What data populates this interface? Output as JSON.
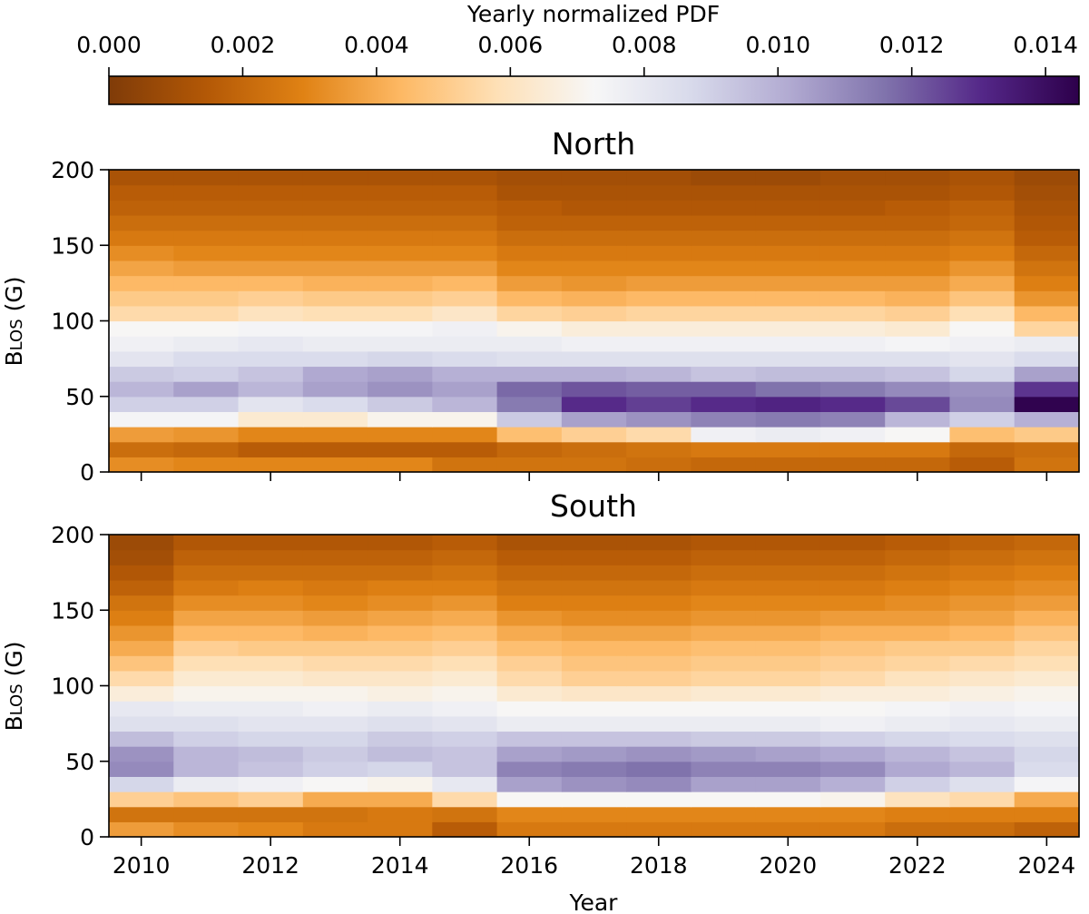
{
  "chart_data": [
    {
      "type": "colorbar",
      "label": "Yearly normalized PDF",
      "range": [
        0.0,
        0.0145
      ],
      "ticks": [
        0.0,
        0.002,
        0.004,
        0.006,
        0.008,
        0.01,
        0.012,
        0.014
      ],
      "tick_labels": [
        "0.000",
        "0.002",
        "0.004",
        "0.006",
        "0.008",
        "0.010",
        "0.012",
        "0.014"
      ],
      "colormap": "PuOr",
      "colormap_stops": [
        "#7f3b08",
        "#b35806",
        "#e08214",
        "#fdb863",
        "#fee0b6",
        "#f7f7f7",
        "#d8daeb",
        "#b2abd2",
        "#8073ac",
        "#542788",
        "#2d004b"
      ]
    },
    {
      "type": "heatmap",
      "title": "North",
      "xlabel": "",
      "ylabel": "B_LOS (G)",
      "ylabel_main": "B",
      "ylabel_sub": "LOS",
      "ylabel_unit": "(G)",
      "x": [
        2010,
        2011,
        2012,
        2013,
        2014,
        2015,
        2016,
        2017,
        2018,
        2019,
        2020,
        2021,
        2022,
        2023,
        2024
      ],
      "x_ticks": [
        2010,
        2012,
        2014,
        2016,
        2018,
        2020,
        2022,
        2024
      ],
      "x_tick_labels": [],
      "y_bins": [
        0,
        10,
        20,
        30,
        40,
        50,
        60,
        70,
        80,
        90,
        100,
        110,
        120,
        130,
        140,
        150,
        160,
        170,
        180,
        190,
        200
      ],
      "y_ticks": [
        0,
        50,
        100,
        150,
        200
      ],
      "y_tick_labels": [
        "0",
        "50",
        "100",
        "150",
        "200"
      ],
      "ylim": [
        0,
        200
      ],
      "z": [
        [
          0.0032,
          0.003,
          0.003,
          0.003,
          0.003,
          0.0024,
          0.0024,
          0.0024,
          0.0022,
          0.002,
          0.002,
          0.002,
          0.002,
          0.0016,
          0.0024
        ],
        [
          0.0022,
          0.002,
          0.0016,
          0.0016,
          0.0016,
          0.0016,
          0.002,
          0.0022,
          0.0024,
          0.0026,
          0.0026,
          0.0026,
          0.0026,
          0.002,
          0.0022
        ],
        [
          0.0036,
          0.0034,
          0.003,
          0.003,
          0.003,
          0.003,
          0.0046,
          0.0052,
          0.0056,
          0.0076,
          0.0078,
          0.0076,
          0.0072,
          0.0046,
          0.005
        ],
        [
          0.0074,
          0.0074,
          0.0064,
          0.0064,
          0.007,
          0.007,
          0.0092,
          0.0104,
          0.0108,
          0.0112,
          0.0114,
          0.0112,
          0.0098,
          0.009,
          0.01
        ],
        [
          0.009,
          0.009,
          0.0082,
          0.0086,
          0.0092,
          0.0098,
          0.0114,
          0.013,
          0.0126,
          0.013,
          0.0132,
          0.013,
          0.0124,
          0.011,
          0.0144
        ],
        [
          0.0098,
          0.0104,
          0.0098,
          0.0104,
          0.0108,
          0.0104,
          0.0118,
          0.0122,
          0.012,
          0.012,
          0.0116,
          0.0114,
          0.011,
          0.0108,
          0.0128
        ],
        [
          0.0092,
          0.009,
          0.0094,
          0.0102,
          0.0104,
          0.01,
          0.01,
          0.01,
          0.0098,
          0.0094,
          0.0096,
          0.0096,
          0.0094,
          0.0088,
          0.0104
        ],
        [
          0.0082,
          0.0086,
          0.0086,
          0.0086,
          0.0088,
          0.0086,
          0.0084,
          0.0084,
          0.0084,
          0.0084,
          0.0084,
          0.0084,
          0.0084,
          0.0082,
          0.0086
        ],
        [
          0.0076,
          0.0078,
          0.008,
          0.0078,
          0.0078,
          0.0078,
          0.0078,
          0.0076,
          0.0076,
          0.0076,
          0.0076,
          0.0076,
          0.0074,
          0.0076,
          0.0078
        ],
        [
          0.0072,
          0.0072,
          0.0074,
          0.0074,
          0.0074,
          0.0076,
          0.007,
          0.0066,
          0.0066,
          0.0066,
          0.0066,
          0.0066,
          0.0064,
          0.0072,
          0.0054
        ],
        [
          0.0056,
          0.0056,
          0.006,
          0.0058,
          0.0058,
          0.0062,
          0.0054,
          0.0052,
          0.0054,
          0.0054,
          0.0054,
          0.0054,
          0.0052,
          0.0058,
          0.0044
        ],
        [
          0.005,
          0.005,
          0.0052,
          0.005,
          0.005,
          0.0052,
          0.0044,
          0.0042,
          0.0044,
          0.0044,
          0.0044,
          0.0044,
          0.0042,
          0.0048,
          0.0034
        ],
        [
          0.0044,
          0.0044,
          0.0044,
          0.0042,
          0.0042,
          0.0044,
          0.0036,
          0.0034,
          0.0036,
          0.0036,
          0.0036,
          0.0036,
          0.0036,
          0.004,
          0.0028
        ],
        [
          0.0038,
          0.0036,
          0.0036,
          0.0036,
          0.0036,
          0.0036,
          0.003,
          0.003,
          0.003,
          0.003,
          0.003,
          0.003,
          0.003,
          0.0034,
          0.0024
        ],
        [
          0.0032,
          0.003,
          0.003,
          0.003,
          0.003,
          0.003,
          0.0026,
          0.0026,
          0.0026,
          0.0026,
          0.0026,
          0.0026,
          0.0026,
          0.0028,
          0.002
        ],
        [
          0.0026,
          0.0026,
          0.0026,
          0.0026,
          0.0026,
          0.0026,
          0.0022,
          0.0022,
          0.0022,
          0.0022,
          0.0022,
          0.0022,
          0.0022,
          0.0024,
          0.0016
        ],
        [
          0.0022,
          0.0022,
          0.0022,
          0.0022,
          0.0022,
          0.0022,
          0.0018,
          0.0018,
          0.0018,
          0.0018,
          0.0018,
          0.0018,
          0.0018,
          0.002,
          0.0014
        ],
        [
          0.0018,
          0.0018,
          0.0018,
          0.0018,
          0.0018,
          0.0018,
          0.0016,
          0.0014,
          0.0014,
          0.0014,
          0.0014,
          0.0014,
          0.0016,
          0.0018,
          0.0012
        ],
        [
          0.0016,
          0.0016,
          0.0016,
          0.0016,
          0.0016,
          0.0016,
          0.0012,
          0.0012,
          0.0012,
          0.0012,
          0.0012,
          0.0012,
          0.0012,
          0.0014,
          0.001
        ],
        [
          0.0012,
          0.0012,
          0.0012,
          0.0012,
          0.0012,
          0.0012,
          0.001,
          0.001,
          0.001,
          0.0008,
          0.0008,
          0.001,
          0.001,
          0.0012,
          0.0008
        ]
      ]
    },
    {
      "type": "heatmap",
      "title": "South",
      "xlabel": "Year",
      "ylabel": "B_LOS (G)",
      "ylabel_main": "B",
      "ylabel_sub": "LOS",
      "ylabel_unit": "(G)",
      "x": [
        2010,
        2011,
        2012,
        2013,
        2014,
        2015,
        2016,
        2017,
        2018,
        2019,
        2020,
        2021,
        2022,
        2023,
        2024
      ],
      "x_ticks": [
        2010,
        2012,
        2014,
        2016,
        2018,
        2020,
        2022,
        2024
      ],
      "x_tick_labels": [
        "2010",
        "2012",
        "2014",
        "2016",
        "2018",
        "2020",
        "2022",
        "2024"
      ],
      "y_bins": [
        0,
        10,
        20,
        30,
        40,
        50,
        60,
        70,
        80,
        90,
        100,
        110,
        120,
        130,
        140,
        150,
        160,
        170,
        180,
        190,
        200
      ],
      "y_ticks": [
        0,
        50,
        100,
        150,
        200
      ],
      "y_tick_labels": [
        "0",
        "50",
        "100",
        "150",
        "200"
      ],
      "ylim": [
        0,
        200
      ],
      "z": [
        [
          0.0036,
          0.0032,
          0.003,
          0.0026,
          0.0026,
          0.0016,
          0.0026,
          0.0026,
          0.0026,
          0.0026,
          0.0026,
          0.0026,
          0.0022,
          0.0022,
          0.0018
        ],
        [
          0.0024,
          0.0024,
          0.0024,
          0.0024,
          0.0026,
          0.0024,
          0.003,
          0.003,
          0.003,
          0.003,
          0.003,
          0.003,
          0.0028,
          0.0028,
          0.0028
        ],
        [
          0.0052,
          0.0048,
          0.0052,
          0.004,
          0.004,
          0.0056,
          0.0072,
          0.0072,
          0.0072,
          0.0072,
          0.0072,
          0.007,
          0.006,
          0.0056,
          0.004
        ],
        [
          0.0088,
          0.0078,
          0.0076,
          0.0072,
          0.007,
          0.008,
          0.0104,
          0.0108,
          0.011,
          0.0104,
          0.0104,
          0.01,
          0.009,
          0.0084,
          0.0074
        ],
        [
          0.011,
          0.0098,
          0.0094,
          0.009,
          0.0088,
          0.0094,
          0.0112,
          0.0114,
          0.0116,
          0.0112,
          0.0112,
          0.011,
          0.0102,
          0.0098,
          0.0086
        ],
        [
          0.0108,
          0.0098,
          0.0096,
          0.0092,
          0.0096,
          0.0094,
          0.0104,
          0.0106,
          0.0108,
          0.0106,
          0.0104,
          0.0102,
          0.0098,
          0.0094,
          0.0088
        ],
        [
          0.0096,
          0.009,
          0.0088,
          0.0088,
          0.0092,
          0.009,
          0.0094,
          0.0094,
          0.0094,
          0.0092,
          0.0092,
          0.009,
          0.0088,
          0.0086,
          0.0084
        ],
        [
          0.0084,
          0.0084,
          0.0082,
          0.0082,
          0.0084,
          0.0082,
          0.0078,
          0.0078,
          0.0078,
          0.0078,
          0.0078,
          0.0076,
          0.0078,
          0.008,
          0.0078
        ],
        [
          0.008,
          0.0078,
          0.0078,
          0.0076,
          0.0078,
          0.0076,
          0.0072,
          0.0072,
          0.0072,
          0.0072,
          0.0072,
          0.0072,
          0.0074,
          0.0076,
          0.0074
        ],
        [
          0.0066,
          0.007,
          0.007,
          0.007,
          0.0068,
          0.007,
          0.0064,
          0.0062,
          0.0062,
          0.0064,
          0.0064,
          0.0066,
          0.0066,
          0.0068,
          0.007
        ],
        [
          0.0056,
          0.0064,
          0.0064,
          0.0062,
          0.0062,
          0.0064,
          0.0056,
          0.0052,
          0.0052,
          0.0054,
          0.0054,
          0.0056,
          0.006,
          0.0062,
          0.0064
        ],
        [
          0.0048,
          0.0058,
          0.0058,
          0.0056,
          0.0056,
          0.0058,
          0.0052,
          0.0048,
          0.0048,
          0.005,
          0.005,
          0.0052,
          0.0054,
          0.0056,
          0.0058
        ],
        [
          0.004,
          0.0052,
          0.005,
          0.005,
          0.005,
          0.0052,
          0.0046,
          0.0044,
          0.0044,
          0.0046,
          0.0046,
          0.0048,
          0.005,
          0.005,
          0.0054
        ],
        [
          0.0034,
          0.0044,
          0.0044,
          0.0042,
          0.0044,
          0.0046,
          0.004,
          0.0038,
          0.0038,
          0.004,
          0.004,
          0.0042,
          0.0042,
          0.0044,
          0.0048
        ],
        [
          0.0028,
          0.0038,
          0.0038,
          0.0036,
          0.0038,
          0.004,
          0.0034,
          0.0032,
          0.0032,
          0.0034,
          0.0034,
          0.0036,
          0.0036,
          0.0038,
          0.0042
        ],
        [
          0.0024,
          0.0032,
          0.0032,
          0.003,
          0.0032,
          0.0034,
          0.0028,
          0.0028,
          0.0028,
          0.003,
          0.003,
          0.003,
          0.0032,
          0.0034,
          0.0036
        ],
        [
          0.0018,
          0.0026,
          0.0028,
          0.0026,
          0.0028,
          0.0028,
          0.0024,
          0.0024,
          0.0024,
          0.0026,
          0.0026,
          0.0026,
          0.0028,
          0.003,
          0.0032
        ],
        [
          0.0014,
          0.0022,
          0.0022,
          0.0022,
          0.0022,
          0.0024,
          0.002,
          0.002,
          0.002,
          0.0022,
          0.0022,
          0.0022,
          0.0024,
          0.0026,
          0.0028
        ],
        [
          0.001,
          0.0018,
          0.0018,
          0.0018,
          0.0018,
          0.002,
          0.0016,
          0.0016,
          0.0016,
          0.0018,
          0.0018,
          0.0018,
          0.002,
          0.0022,
          0.0024
        ],
        [
          0.0008,
          0.0014,
          0.0014,
          0.0014,
          0.0014,
          0.0016,
          0.0012,
          0.0012,
          0.0012,
          0.0014,
          0.0014,
          0.0014,
          0.0016,
          0.0018,
          0.002
        ]
      ]
    }
  ]
}
